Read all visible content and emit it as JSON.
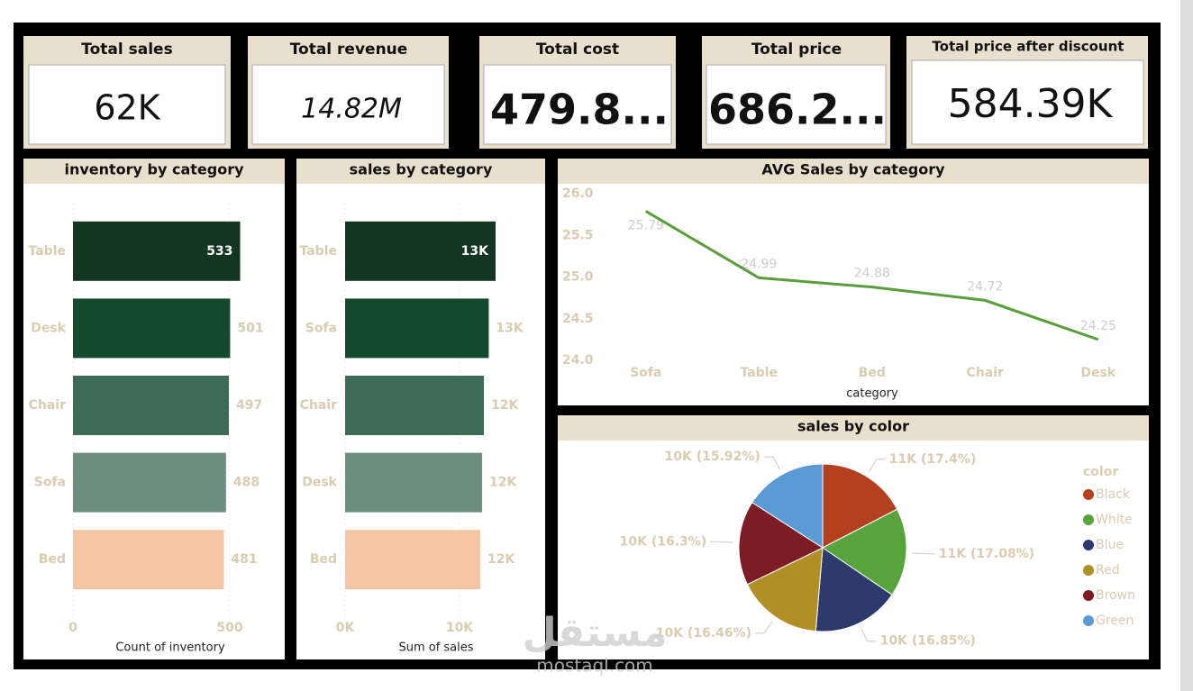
{
  "kpis": [
    {
      "title": "Total sales",
      "value": "62K"
    },
    {
      "title": "Total revenue",
      "value": "14.82M"
    },
    {
      "title": "Total cost",
      "value": "479.8..."
    },
    {
      "title": "Total price",
      "value": "686.2..."
    },
    {
      "title": "Total price after discount",
      "value": "584.39K"
    }
  ],
  "chart_data": [
    {
      "type": "bar",
      "orientation": "horizontal",
      "title": "inventory by category",
      "categories": [
        "Table",
        "Desk",
        "Chair",
        "Sofa",
        "Bed"
      ],
      "values": [
        533,
        501,
        497,
        488,
        481
      ],
      "colors": [
        "#12361f",
        "#134a2b",
        "#3d6b55",
        "#6e8f7d",
        "#f4c5a3"
      ],
      "xlim": [
        0,
        620
      ],
      "xticks": [
        0,
        500
      ],
      "x_label": "Count of inventory"
    },
    {
      "type": "bar",
      "orientation": "horizontal",
      "title": "sales by category",
      "categories": [
        "Table",
        "Sofa",
        "Chair",
        "Desk",
        "Bed"
      ],
      "values": [
        13150,
        12550,
        12130,
        11970,
        11810
      ],
      "value_labels": [
        "13K",
        "13K",
        "12K",
        "12K",
        "12K"
      ],
      "colors": [
        "#12361f",
        "#134a2b",
        "#3d6b55",
        "#6e8f7d",
        "#f4c5a3"
      ],
      "xlim": [
        0,
        15000
      ],
      "xticks": [
        {
          "value": 0,
          "label": "0K"
        },
        {
          "value": 10000,
          "label": "10K"
        }
      ],
      "x_label": "Sum of sales"
    },
    {
      "type": "line",
      "title": "AVG Sales by category",
      "categories": [
        "Sofa",
        "Table",
        "Bed",
        "Chair",
        "Desk"
      ],
      "values": [
        25.79,
        24.99,
        24.88,
        24.72,
        24.25
      ],
      "color": "#5a9e3a",
      "ylim": [
        24,
        26
      ],
      "yticks": [
        {
          "value": 24,
          "label": "24.0"
        },
        24.5,
        {
          "value": 25,
          "label": "25.0"
        },
        25.5,
        {
          "value": 26,
          "label": "26.0"
        }
      ],
      "x_label": "category"
    },
    {
      "type": "pie",
      "title": "sales by color",
      "legend_title": "color",
      "categories": [
        "Black",
        "White",
        "Blue",
        "Red",
        "Brown",
        "Green"
      ],
      "values": [
        17.4,
        17.08,
        16.85,
        16.46,
        16.3,
        15.92
      ],
      "value_labels": [
        "11K (17.4%)",
        "11K (17.08%)",
        "10K (16.85%)",
        "10K (16.46%)",
        "10K (16.3%)",
        "10K (15.92%)"
      ],
      "colors": [
        "#b5401f",
        "#57a33c",
        "#2d3a6e",
        "#b08f25",
        "#7d1c24",
        "#5b9bd5"
      ]
    }
  ],
  "watermark": {
    "text": "مستقل",
    "url": "mostaql.com"
  }
}
